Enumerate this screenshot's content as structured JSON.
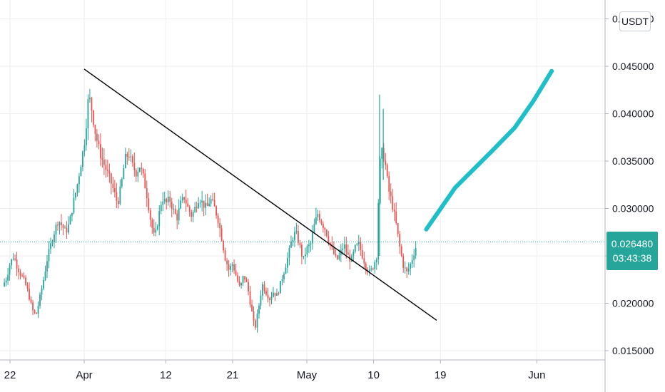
{
  "chart_data": {
    "type": "candlestick",
    "title": "",
    "ylim": [
      0.0145,
      0.0485
    ],
    "y_ticks": [
      {
        "value": 0.015,
        "label": "0.015000"
      },
      {
        "value": 0.02,
        "label": "0.020000"
      },
      {
        "value": 0.025,
        "label": "0.025000"
      },
      {
        "value": 0.03,
        "label": "0.030000"
      },
      {
        "value": 0.035,
        "label": "0.035000"
      },
      {
        "value": 0.04,
        "label": "0.040000"
      },
      {
        "value": 0.045,
        "label": "0.045000"
      },
      {
        "value": 0.05,
        "label": "0.050000"
      }
    ],
    "x_ticks": [
      {
        "day": -10,
        "label": "22"
      },
      {
        "day": 0,
        "label": "Apr"
      },
      {
        "day": 11,
        "label": "12"
      },
      {
        "day": 20,
        "label": "21"
      },
      {
        "day": 30,
        "label": "May"
      },
      {
        "day": 39,
        "label": "10"
      },
      {
        "day": 48,
        "label": "19"
      },
      {
        "day": 61,
        "label": "Jun"
      }
    ],
    "x_range_days": [
      -11,
      68
    ],
    "currency": "USDT",
    "last_price": 0.02648,
    "last_price_label": "0.026480",
    "countdown": "03:43:38",
    "colors": {
      "up": "#26a69a",
      "down": "#ef5350",
      "trendline": "#000000",
      "projection": "#1fbfc9",
      "grid": "#eceef2",
      "price_line": "#26a69a"
    },
    "price_path": [
      [
        -11.0,
        0.0218
      ],
      [
        -10.5,
        0.0226
      ],
      [
        -10.0,
        0.0242
      ],
      [
        -9.5,
        0.025
      ],
      [
        -9.0,
        0.0238
      ],
      [
        -8.5,
        0.023
      ],
      [
        -8.0,
        0.0222
      ],
      [
        -7.5,
        0.021
      ],
      [
        -7.0,
        0.0193
      ],
      [
        -6.5,
        0.0187
      ],
      [
        -6.0,
        0.0205
      ],
      [
        -5.5,
        0.0224
      ],
      [
        -5.0,
        0.0246
      ],
      [
        -4.5,
        0.0262
      ],
      [
        -4.0,
        0.0276
      ],
      [
        -3.5,
        0.0288
      ],
      [
        -3.0,
        0.0282
      ],
      [
        -2.5,
        0.0275
      ],
      [
        -2.0,
        0.0284
      ],
      [
        -1.5,
        0.0305
      ],
      [
        -1.0,
        0.0322
      ],
      [
        -0.5,
        0.0345
      ],
      [
        0.0,
        0.0368
      ],
      [
        0.3,
        0.0392
      ],
      [
        0.6,
        0.042
      ],
      [
        1.0,
        0.0405
      ],
      [
        1.5,
        0.038
      ],
      [
        2.0,
        0.0362
      ],
      [
        2.5,
        0.035
      ],
      [
        3.0,
        0.034
      ],
      [
        3.5,
        0.033
      ],
      [
        4.0,
        0.0318
      ],
      [
        4.5,
        0.0305
      ],
      [
        5.0,
        0.0325
      ],
      [
        5.5,
        0.0352
      ],
      [
        6.0,
        0.0358
      ],
      [
        6.5,
        0.0345
      ],
      [
        7.0,
        0.0338
      ],
      [
        7.5,
        0.0345
      ],
      [
        8.0,
        0.0332
      ],
      [
        8.5,
        0.0312
      ],
      [
        9.0,
        0.0285
      ],
      [
        9.5,
        0.0268
      ],
      [
        10.0,
        0.029
      ],
      [
        10.5,
        0.0312
      ],
      [
        11.0,
        0.0305
      ],
      [
        11.5,
        0.031
      ],
      [
        12.0,
        0.0298
      ],
      [
        12.5,
        0.029
      ],
      [
        13.0,
        0.0305
      ],
      [
        13.5,
        0.0312
      ],
      [
        14.0,
        0.03
      ],
      [
        14.5,
        0.0292
      ],
      [
        15.0,
        0.0302
      ],
      [
        15.5,
        0.0312
      ],
      [
        16.0,
        0.0305
      ],
      [
        16.5,
        0.03
      ],
      [
        17.0,
        0.031
      ],
      [
        17.5,
        0.0302
      ],
      [
        18.0,
        0.029
      ],
      [
        18.5,
        0.027
      ],
      [
        19.0,
        0.0248
      ],
      [
        19.5,
        0.0235
      ],
      [
        20.0,
        0.0242
      ],
      [
        20.5,
        0.0228
      ],
      [
        21.0,
        0.0215
      ],
      [
        21.5,
        0.023
      ],
      [
        22.0,
        0.0218
      ],
      [
        22.5,
        0.0195
      ],
      [
        23.0,
        0.0172
      ],
      [
        23.5,
        0.0195
      ],
      [
        24.0,
        0.022
      ],
      [
        24.5,
        0.0212
      ],
      [
        25.0,
        0.0205
      ],
      [
        25.5,
        0.0212
      ],
      [
        26.0,
        0.0208
      ],
      [
        26.5,
        0.0222
      ],
      [
        27.0,
        0.0236
      ],
      [
        27.5,
        0.025
      ],
      [
        28.0,
        0.0268
      ],
      [
        28.5,
        0.0275
      ],
      [
        29.0,
        0.0262
      ],
      [
        29.5,
        0.0245
      ],
      [
        30.0,
        0.0258
      ],
      [
        30.5,
        0.0262
      ],
      [
        31.0,
        0.0282
      ],
      [
        31.5,
        0.0295
      ],
      [
        32.0,
        0.0285
      ],
      [
        32.5,
        0.0278
      ],
      [
        33.0,
        0.0265
      ],
      [
        33.5,
        0.0255
      ],
      [
        34.0,
        0.0245
      ],
      [
        34.5,
        0.0252
      ],
      [
        35.0,
        0.0262
      ],
      [
        35.5,
        0.025
      ],
      [
        36.0,
        0.0245
      ],
      [
        36.5,
        0.0258
      ],
      [
        37.0,
        0.0262
      ],
      [
        37.5,
        0.025
      ],
      [
        38.0,
        0.0238
      ],
      [
        38.5,
        0.0232
      ],
      [
        39.0,
        0.024
      ],
      [
        39.4,
        0.025
      ],
      [
        39.8,
        0.0345
      ],
      [
        40.2,
        0.0362
      ],
      [
        40.6,
        0.0345
      ],
      [
        41.0,
        0.032
      ],
      [
        41.5,
        0.0305
      ],
      [
        42.0,
        0.0285
      ],
      [
        42.5,
        0.026
      ],
      [
        43.0,
        0.024
      ],
      [
        43.5,
        0.0232
      ],
      [
        44.0,
        0.0242
      ],
      [
        44.5,
        0.0255
      ],
      [
        44.9,
        0.0264
      ]
    ],
    "trendline": [
      [
        0.0,
        0.0447
      ],
      [
        47.5,
        0.0182
      ]
    ],
    "projection_path": [
      [
        46.1,
        0.0278
      ],
      [
        50.0,
        0.0322
      ],
      [
        55.0,
        0.0361
      ],
      [
        58.0,
        0.0385
      ],
      [
        60.5,
        0.0413
      ],
      [
        63.0,
        0.0445
      ]
    ]
  }
}
